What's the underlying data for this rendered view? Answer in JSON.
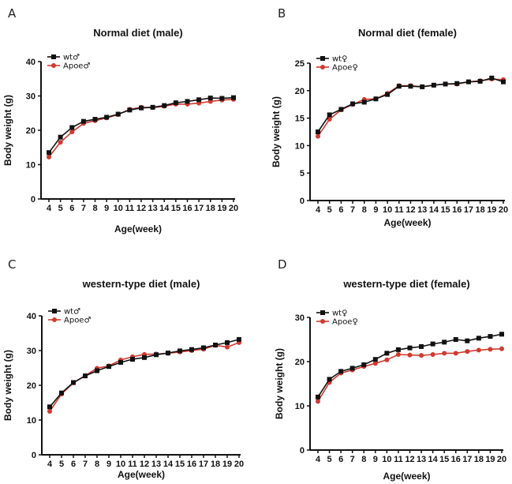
{
  "chart_data": [
    {
      "panel": "A",
      "type": "line",
      "title": "Normal diet (male)",
      "xlabel": "Age(week)",
      "ylabel": "Body weight (g)",
      "x": [
        4,
        5,
        6,
        7,
        8,
        9,
        10,
        11,
        12,
        13,
        14,
        15,
        16,
        17,
        18,
        19,
        20
      ],
      "ylim": [
        0,
        40
      ],
      "yticks": [
        0,
        10,
        20,
        30,
        40
      ],
      "legend": "top-left",
      "grid": false,
      "series": [
        {
          "name": "wt♂",
          "color": "#111111",
          "values": [
            13.5,
            18,
            20.8,
            22.6,
            23.2,
            23.8,
            24.7,
            25.9,
            26.5,
            26.7,
            27.2,
            28,
            28.4,
            28.9,
            29.4,
            29.3,
            29.5
          ]
        },
        {
          "name": "Apoe♂",
          "color": "#d03a30",
          "values": [
            12.2,
            16.5,
            19.5,
            22,
            22.8,
            23.6,
            24.6,
            26.1,
            26.7,
            26.6,
            27,
            27.6,
            27.6,
            27.9,
            28.4,
            28.8,
            29
          ]
        }
      ]
    },
    {
      "panel": "B",
      "type": "line",
      "title": "Normal diet (female)",
      "xlabel": "Age(week)",
      "ylabel": "Body weight (g)",
      "x": [
        4,
        5,
        6,
        7,
        8,
        9,
        10,
        11,
        12,
        13,
        14,
        15,
        16,
        17,
        18,
        19,
        20
      ],
      "ylim": [
        0,
        25
      ],
      "yticks": [
        0,
        5,
        10,
        15,
        20,
        25
      ],
      "legend": "top-left",
      "grid": false,
      "series": [
        {
          "name": "wt♀",
          "color": "#111111",
          "values": [
            12.5,
            15.6,
            16.6,
            17.6,
            17.9,
            18.5,
            19.3,
            20.8,
            20.8,
            20.7,
            21,
            21.2,
            21.3,
            21.6,
            21.7,
            22.3,
            21.6
          ]
        },
        {
          "name": "Apoe♀",
          "color": "#d03a30",
          "values": [
            11.7,
            14.8,
            16.5,
            17.5,
            18.4,
            18.5,
            19.5,
            20.9,
            20.9,
            20.7,
            21,
            21.2,
            21.2,
            21.6,
            21.8,
            22.1,
            22
          ]
        }
      ]
    },
    {
      "panel": "C",
      "type": "line",
      "title": "western-type diet (male)",
      "xlabel": "Age(week)",
      "ylabel": "Body weight (g)",
      "x": [
        4,
        5,
        6,
        7,
        8,
        9,
        10,
        11,
        12,
        13,
        14,
        15,
        16,
        17,
        18,
        19,
        20
      ],
      "ylim": [
        0,
        40
      ],
      "yticks": [
        0,
        10,
        20,
        30,
        40
      ],
      "legend": "top-left",
      "grid": false,
      "series": [
        {
          "name": "wt♂",
          "color": "#111111",
          "values": [
            13.8,
            17.8,
            20.8,
            22.7,
            24.2,
            25.4,
            26.6,
            27.5,
            28,
            28.8,
            29.3,
            29.9,
            30.3,
            30.8,
            31.6,
            32.3,
            33.2
          ]
        },
        {
          "name": "Apoe♂",
          "color": "#d03a30",
          "values": [
            12.5,
            17.5,
            20.7,
            22.8,
            24.9,
            25.6,
            27.3,
            28.2,
            28.9,
            29,
            29.2,
            29.6,
            30,
            30.4,
            31.5,
            31,
            32.3
          ]
        }
      ]
    },
    {
      "panel": "D",
      "type": "line",
      "title": "western-type diet (female)",
      "xlabel": "Age(week)",
      "ylabel": "Body weight (g)",
      "x": [
        4,
        5,
        6,
        7,
        8,
        9,
        10,
        11,
        12,
        13,
        14,
        15,
        16,
        17,
        18,
        19,
        20
      ],
      "ylim": [
        0,
        30
      ],
      "yticks": [
        0,
        10,
        20,
        30
      ],
      "legend": "top-left",
      "grid": false,
      "series": [
        {
          "name": "wt♀",
          "color": "#111111",
          "values": [
            12,
            16,
            17.8,
            18.5,
            19.3,
            20.5,
            21.9,
            22.7,
            23.1,
            23.4,
            24,
            24.4,
            25,
            24.7,
            25.3,
            25.7,
            26.2
          ]
        },
        {
          "name": "Apoe♀",
          "color": "#d03a30",
          "values": [
            11,
            15.3,
            17.4,
            18.1,
            18.9,
            19.6,
            20.4,
            21.6,
            21.5,
            21.4,
            21.6,
            21.9,
            21.9,
            22.3,
            22.6,
            22.8,
            22.9
          ]
        }
      ]
    }
  ]
}
